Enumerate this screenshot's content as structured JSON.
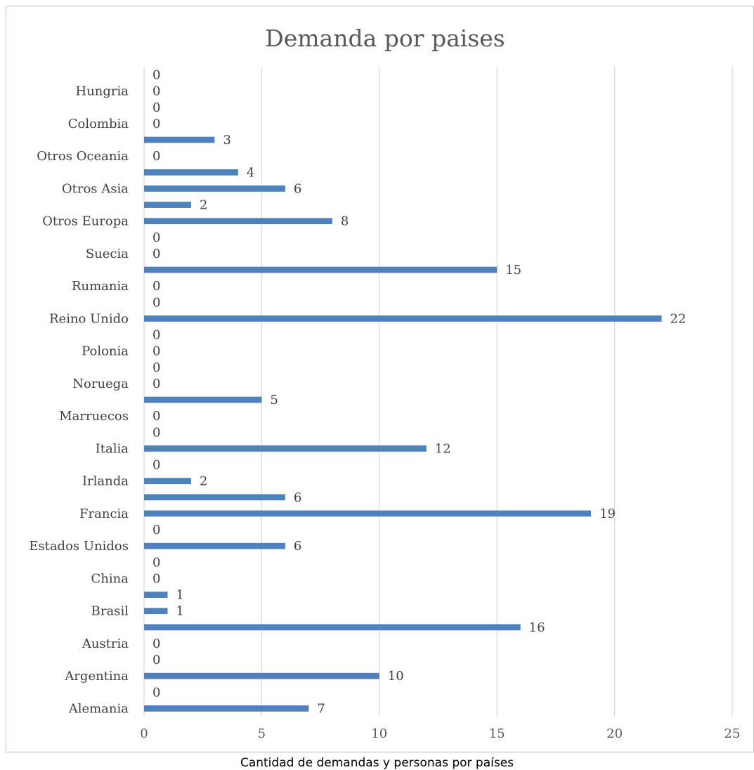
{
  "caption": "Cantidad de demandas y personas por países",
  "colors": {
    "bar": "#4f81bd",
    "grid": "#d9d9d9",
    "frame": "#bfbfbf"
  },
  "chart_data": {
    "type": "bar",
    "orientation": "horizontal",
    "title": "Demanda por paises",
    "xlabel": "",
    "ylabel": "",
    "xlim": [
      0,
      25
    ],
    "x_ticks": [
      0,
      5,
      10,
      15,
      20,
      25
    ],
    "grid": true,
    "legend": "none",
    "categories": [
      "Alemania",
      "",
      "Argentina",
      "",
      "Austria",
      "",
      "Brasil",
      "",
      "China",
      "",
      "Estados Unidos",
      "",
      "Francia",
      "",
      "Irlanda",
      "",
      "Italia",
      "",
      "Marruecos",
      "",
      "Noruega",
      "",
      "Polonia",
      "",
      "Reino Unido",
      "",
      "Rumania",
      "",
      "Suecia",
      "",
      "Otros Europa",
      "",
      "Otros Asia",
      "",
      "Otros Oceania",
      "",
      "Colombia",
      "",
      "Hungria",
      ""
    ],
    "values": [
      7,
      0,
      10,
      0,
      0,
      16,
      1,
      1,
      0,
      0,
      6,
      0,
      19,
      6,
      2,
      0,
      12,
      0,
      0,
      5,
      0,
      0,
      0,
      0,
      22,
      0,
      0,
      15,
      0,
      0,
      8,
      2,
      6,
      4,
      0,
      3,
      0,
      0,
      0,
      0
    ]
  }
}
